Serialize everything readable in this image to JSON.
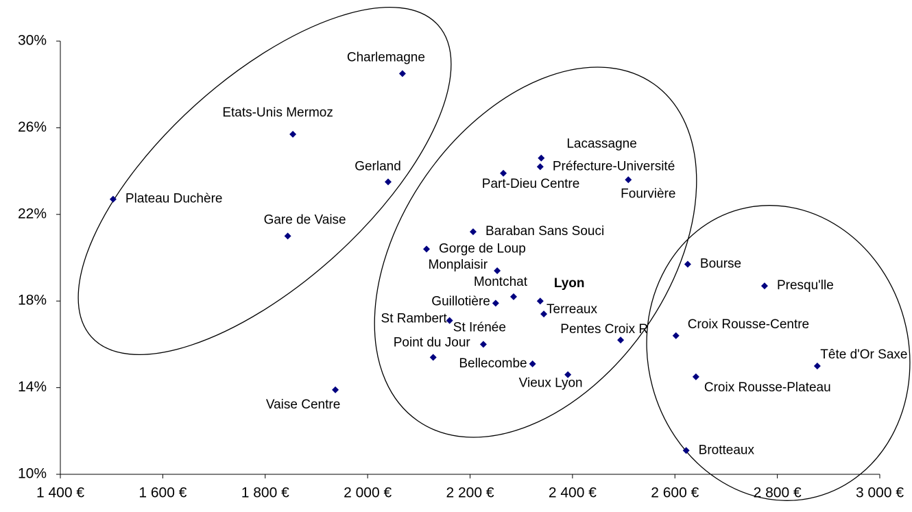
{
  "chart_data": {
    "type": "scatter",
    "color": "#000080",
    "xlim": [
      1400,
      3000
    ],
    "xticks": [
      {
        "value": 1400,
        "label": "1 400 €"
      },
      {
        "value": 1600,
        "label": "1 600 €"
      },
      {
        "value": 1800,
        "label": "1 800 €"
      },
      {
        "value": 2000,
        "label": "2 000 €"
      },
      {
        "value": 2200,
        "label": "2 200 €"
      },
      {
        "value": 2400,
        "label": "2 400 €"
      },
      {
        "value": 2600,
        "label": "2 600 €"
      },
      {
        "value": 2800,
        "label": "2 800 €"
      },
      {
        "value": 3000,
        "label": "3 000 €"
      }
    ],
    "ylim": [
      10,
      30
    ],
    "yticks": [
      {
        "value": 10,
        "label": "10%"
      },
      {
        "value": 14,
        "label": "14%"
      },
      {
        "value": 18,
        "label": "18%"
      },
      {
        "value": 22,
        "label": "22%"
      },
      {
        "value": 26,
        "label": "26%"
      },
      {
        "value": 30,
        "label": "30%"
      }
    ],
    "labels": [
      "Charlemagne",
      "Etats-Unis Mermoz",
      "Gerland",
      "Plateau Duchère",
      "Gare de Vaise",
      "Vaise Centre",
      "Lacassagne",
      "Préfecture-Université",
      "Part-Dieu Centre",
      "Fourvière",
      "Baraban Sans Souci",
      "Gorge de Loup",
      "Monplaisir",
      "Montchat",
      "Lyon",
      "Guillotière",
      "Terreaux",
      "St Rambert",
      "St Irénée",
      "Pentes Croix R",
      "Point du Jour",
      "Bellecombe",
      "Vieux Lyon",
      "Bourse",
      "Presqu'lle",
      "Croix Rousse-Centre",
      "Tête d'Or Saxe",
      "Croix Rousse-Plateau",
      "Brotteaux"
    ],
    "x": [
      2068,
      1854,
      2040,
      1503,
      1844,
      1937,
      2339,
      2337,
      2265,
      2509,
      2206,
      2115,
      2253,
      2285,
      2337,
      2250,
      2344,
      2160,
      2226,
      2494,
      2128,
      2322,
      2391,
      2625,
      2775,
      2602,
      2878,
      2641,
      2622
    ],
    "y": [
      28.5,
      25.7,
      23.5,
      22.7,
      21.0,
      13.9,
      24.6,
      24.2,
      23.9,
      23.6,
      21.2,
      20.4,
      19.4,
      18.2,
      18.0,
      17.9,
      17.4,
      17.1,
      16.0,
      16.2,
      15.4,
      15.1,
      14.6,
      19.7,
      18.7,
      16.4,
      15.0,
      14.5,
      11.1
    ]
  }
}
